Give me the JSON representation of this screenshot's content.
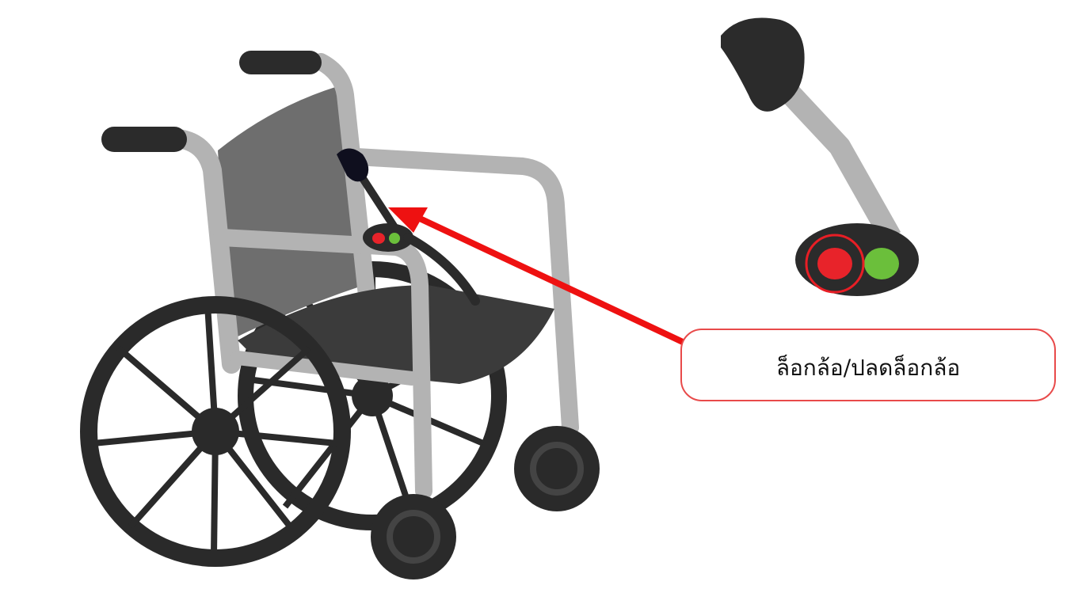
{
  "callout": {
    "label": "ล็อกล้อ/ปลดล็อกล้อ"
  },
  "colors": {
    "frame": "#b3b3b3",
    "frame_dark": "#9c9c9c",
    "tire": "#2a2a2a",
    "seat": "#3b3b3b",
    "backrest": "#6e6e6e",
    "handle": "#2b2b2b",
    "knob": "#0f0f1e",
    "button_red": "#e8232a",
    "button_green": "#6bbf3b",
    "arrow": "#ee1111",
    "highlight": "#e81e25",
    "callout_border": "#e84a4a"
  },
  "icons": {
    "main": "wheelchair-icon",
    "detail": "brake-lever-detail-icon"
  }
}
